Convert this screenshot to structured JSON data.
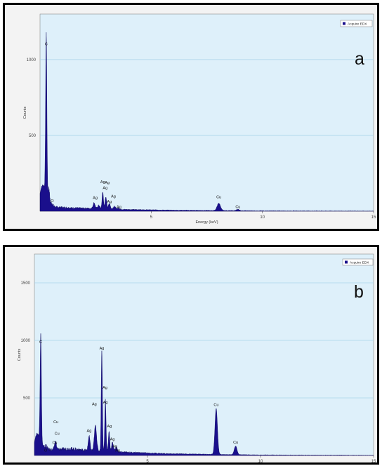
{
  "colors": {
    "plot_background": "#def0fa",
    "gridline": "#a9d4ea",
    "spectrum_fill": "#1a0f8c",
    "spectrum_stroke": "#0a0558",
    "panel_background": "#f3f3f3",
    "frame": "#000000"
  },
  "chart_data": [
    {
      "type": "area",
      "panel_label": "a",
      "xlabel": "Energy (keV)",
      "ylabel": "Counts",
      "legend": {
        "label": "Acquire EDX",
        "placement": "top-right"
      },
      "xlim": [
        0,
        15
      ],
      "ylim": [
        0,
        1300
      ],
      "x_ticks": [
        5,
        10,
        15
      ],
      "y_ticks": [
        500,
        1000
      ],
      "grid": true,
      "series": [
        {
          "peaks": [
            {
              "x": 0.1,
              "y": 150,
              "w": 0.14
            },
            {
              "x": 0.28,
              "y": 1060,
              "w": 0.028
            },
            {
              "x": 0.4,
              "y": 90,
              "w": 0.03
            },
            {
              "x": 0.53,
              "y": 12,
              "w": 0.04
            },
            {
              "x": 2.43,
              "y": 38,
              "w": 0.045
            },
            {
              "x": 2.64,
              "y": 22,
              "w": 0.05
            },
            {
              "x": 2.82,
              "y": 112,
              "w": 0.03
            },
            {
              "x": 2.96,
              "y": 75,
              "w": 0.04
            },
            {
              "x": 3.12,
              "y": 38,
              "w": 0.04
            },
            {
              "x": 3.34,
              "y": 18,
              "w": 0.05
            },
            {
              "x": 3.52,
              "y": 8,
              "w": 0.05
            },
            {
              "x": 8.04,
              "y": 48,
              "w": 0.075
            },
            {
              "x": 8.9,
              "y": 9,
              "w": 0.06
            }
          ],
          "baseline": [
            {
              "x": 0.3,
              "y": 60
            },
            {
              "x": 0.7,
              "y": 28
            },
            {
              "x": 1.5,
              "y": 22
            },
            {
              "x": 2.5,
              "y": 18
            },
            {
              "x": 3.8,
              "y": 12
            },
            {
              "x": 6.0,
              "y": 7
            },
            {
              "x": 10.0,
              "y": 3
            },
            {
              "x": 15.0,
              "y": 1
            }
          ]
        }
      ],
      "annotations": [
        {
          "text": "C",
          "x": 0.28,
          "y": 1095
        },
        {
          "text": "O",
          "x": 0.55,
          "y": 60
        },
        {
          "text": "Ag",
          "x": 2.48,
          "y": 80
        },
        {
          "text": "Ag",
          "x": 2.82,
          "y": 185
        },
        {
          "text": "Ag",
          "x": 3.02,
          "y": 180
        },
        {
          "text": "Ag",
          "x": 2.93,
          "y": 145
        },
        {
          "text": "Ag",
          "x": 3.3,
          "y": 90
        },
        {
          "text": "Ag",
          "x": 3.12,
          "y": 55
        },
        {
          "text": "Ag",
          "x": 3.55,
          "y": 20
        },
        {
          "text": "Cu",
          "x": 8.04,
          "y": 85
        },
        {
          "text": "Cu",
          "x": 8.9,
          "y": 20
        }
      ]
    },
    {
      "type": "area",
      "panel_label": "b",
      "xlabel": "Energy (keV)",
      "ylabel": "Counts",
      "legend": {
        "label": "Acquire EDX",
        "placement": "top-right"
      },
      "xlim": [
        0,
        15
      ],
      "ylim": [
        0,
        1750
      ],
      "x_ticks": [
        5,
        10,
        15
      ],
      "y_ticks": [
        500,
        1000,
        1500
      ],
      "grid": true,
      "series": [
        {
          "peaks": [
            {
              "x": 0.1,
              "y": 160,
              "w": 0.12
            },
            {
              "x": 0.28,
              "y": 945,
              "w": 0.028
            },
            {
              "x": 0.52,
              "y": 30,
              "w": 0.03
            },
            {
              "x": 0.93,
              "y": 70,
              "w": 0.04
            },
            {
              "x": 2.42,
              "y": 125,
              "w": 0.04
            },
            {
              "x": 2.7,
              "y": 220,
              "w": 0.05
            },
            {
              "x": 2.98,
              "y": 880,
              "w": 0.026
            },
            {
              "x": 3.14,
              "y": 450,
              "w": 0.028
            },
            {
              "x": 3.3,
              "y": 175,
              "w": 0.03
            },
            {
              "x": 3.45,
              "y": 80,
              "w": 0.04
            },
            {
              "x": 3.62,
              "y": 40,
              "w": 0.05
            },
            {
              "x": 8.04,
              "y": 400,
              "w": 0.055
            },
            {
              "x": 8.9,
              "y": 75,
              "w": 0.06
            }
          ],
          "baseline": [
            {
              "x": 0.3,
              "y": 80
            },
            {
              "x": 0.7,
              "y": 50
            },
            {
              "x": 1.6,
              "y": 60
            },
            {
              "x": 2.3,
              "y": 45
            },
            {
              "x": 3.8,
              "y": 30
            },
            {
              "x": 6.0,
              "y": 15
            },
            {
              "x": 10.0,
              "y": 5
            },
            {
              "x": 15.0,
              "y": 2
            }
          ]
        }
      ],
      "annotations": [
        {
          "text": "C",
          "x": 0.28,
          "y": 975
        },
        {
          "text": "O",
          "x": 0.5,
          "y": 35
        },
        {
          "text": "Cu",
          "x": 0.95,
          "y": 280
        },
        {
          "text": "Cu",
          "x": 1.0,
          "y": 180
        },
        {
          "text": "Cu",
          "x": 0.9,
          "y": 100
        },
        {
          "text": "Ag",
          "x": 2.42,
          "y": 205
        },
        {
          "text": "Ag",
          "x": 2.98,
          "y": 920
        },
        {
          "text": "Ag",
          "x": 3.12,
          "y": 580
        },
        {
          "text": "Ag",
          "x": 2.65,
          "y": 435
        },
        {
          "text": "Ag",
          "x": 3.14,
          "y": 450
        },
        {
          "text": "Ag",
          "x": 3.32,
          "y": 245
        },
        {
          "text": "Ag",
          "x": 3.45,
          "y": 130
        },
        {
          "text": "Ag",
          "x": 3.55,
          "y": 70
        },
        {
          "text": "Ag",
          "x": 3.68,
          "y": 35
        },
        {
          "text": "Cu",
          "x": 8.04,
          "y": 430
        },
        {
          "text": "Cu",
          "x": 8.9,
          "y": 105
        }
      ]
    }
  ]
}
